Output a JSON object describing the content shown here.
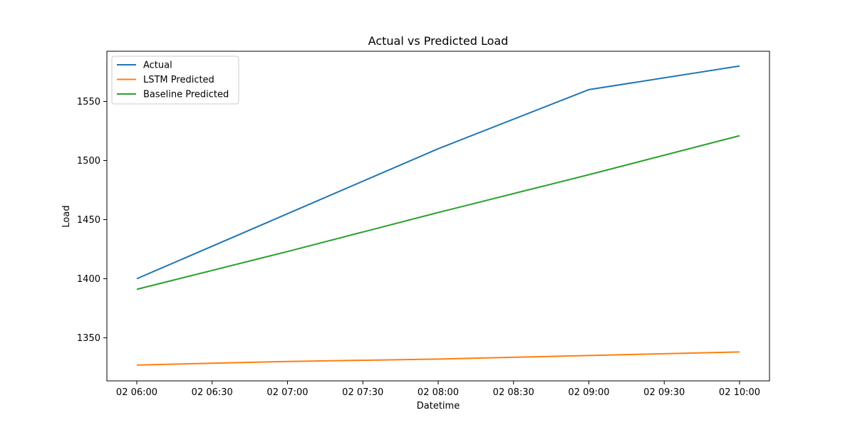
{
  "chart_data": {
    "type": "line",
    "title": "Actual vs Predicted Load",
    "xlabel": "Datetime",
    "ylabel": "Load",
    "x": [
      "02 06:00",
      "02 07:00",
      "02 08:00",
      "02 09:00",
      "02 10:00"
    ],
    "x_ticks": [
      "02 06:00",
      "02 06:30",
      "02 07:00",
      "02 07:30",
      "02 08:00",
      "02 08:30",
      "02 09:00",
      "02 09:30",
      "02 10:00"
    ],
    "y_ticks": [
      1350,
      1400,
      1450,
      1500,
      1550
    ],
    "ylim": [
      1315,
      1590
    ],
    "grid": false,
    "legend_position": "upper-left",
    "series": [
      {
        "name": "Actual",
        "color": "#1f77b4",
        "values": [
          1400,
          1455,
          1510,
          1560,
          1580
        ]
      },
      {
        "name": "LSTM Predicted",
        "color": "#ff7f0e",
        "values": [
          1327,
          1330,
          1332,
          1335,
          1338
        ]
      },
      {
        "name": "Baseline Predicted",
        "color": "#2ca02c",
        "values": [
          1391,
          1423,
          1456,
          1488,
          1521
        ]
      }
    ]
  }
}
